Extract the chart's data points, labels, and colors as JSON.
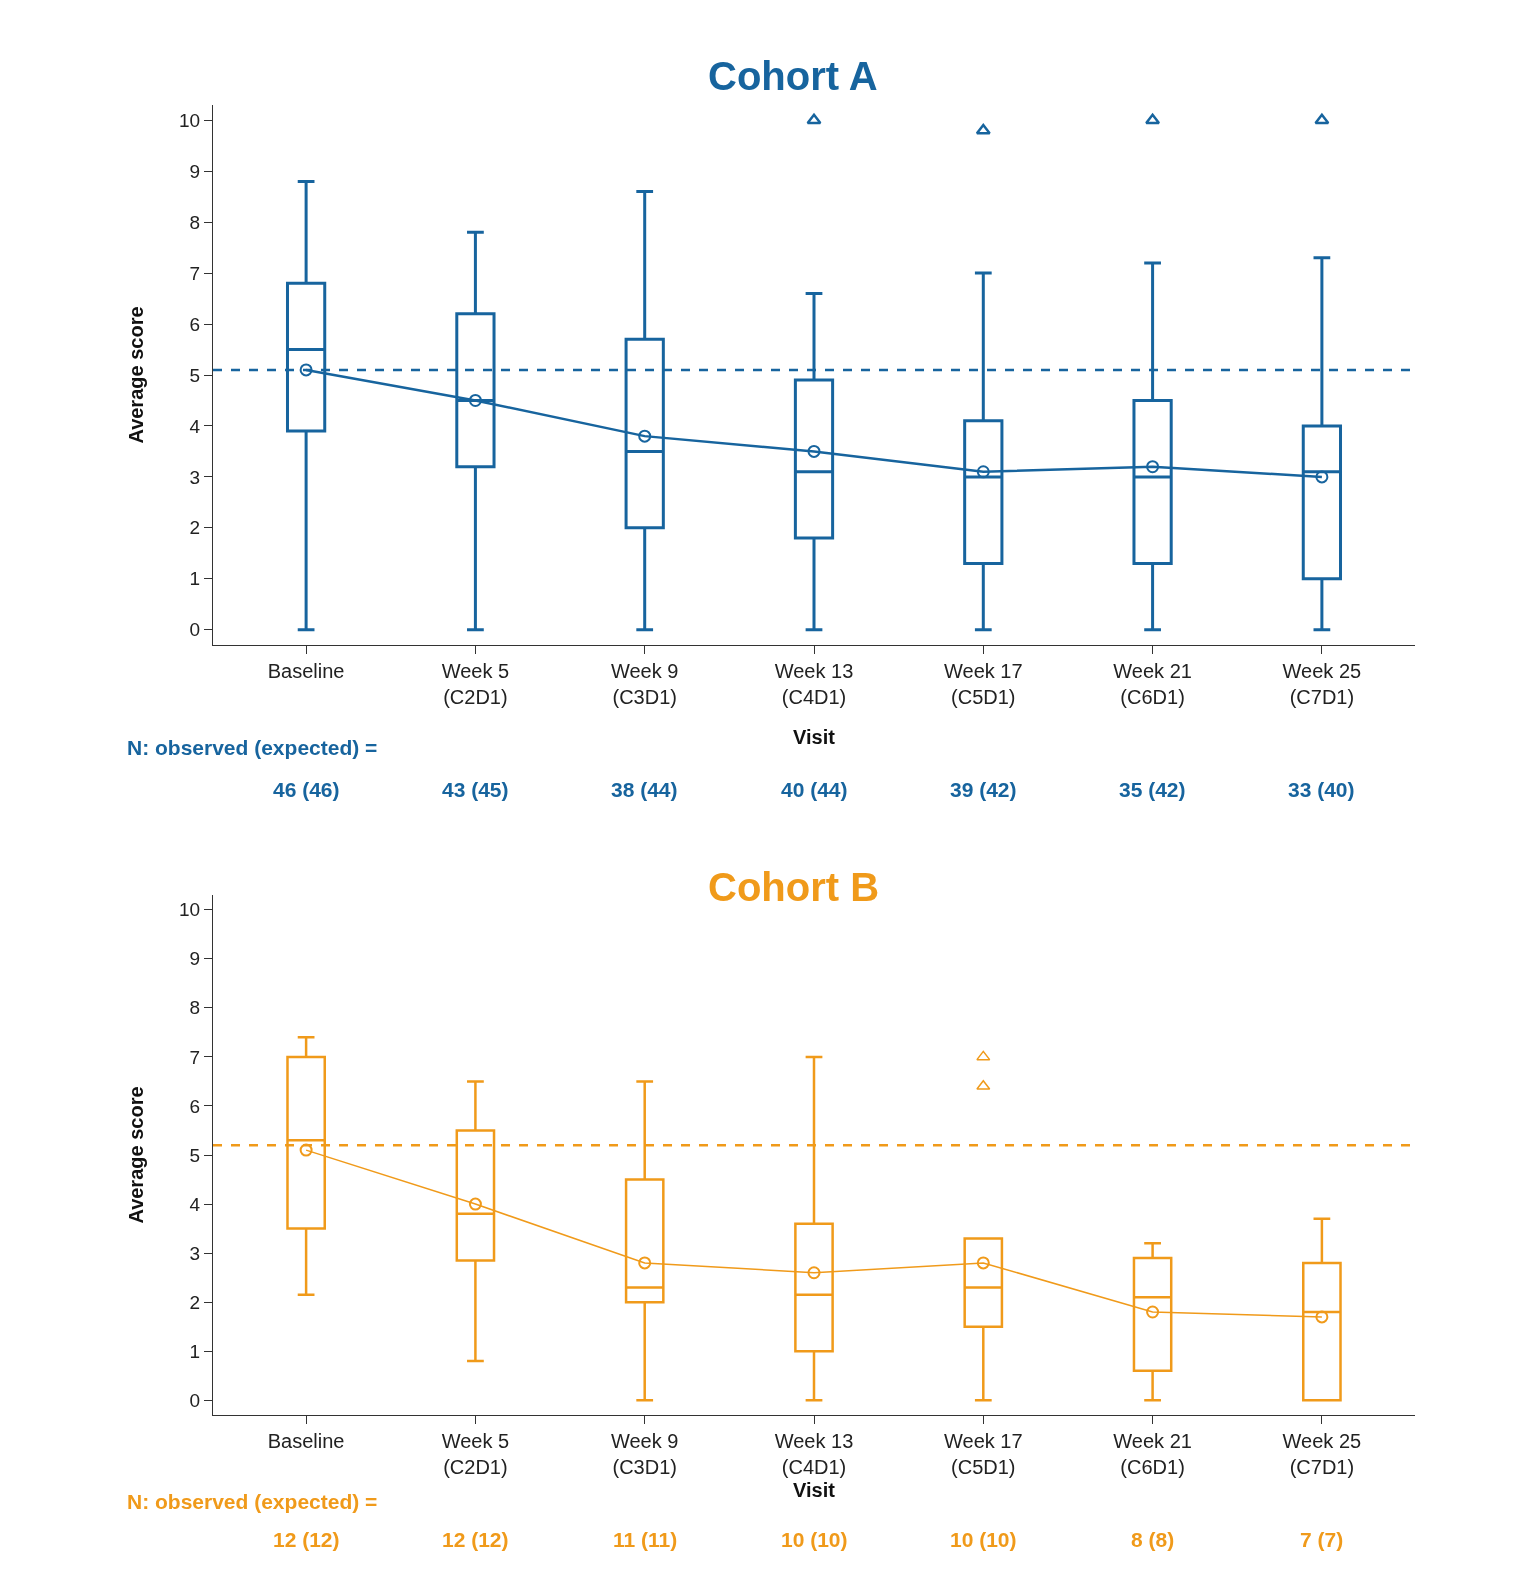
{
  "chart_data": [
    {
      "type": "box",
      "title": "Cohort A",
      "xlabel": "Visit",
      "ylabel": "Average score",
      "color": "#17649e",
      "categories": [
        "Baseline",
        "Week 5\n(C2D1)",
        "Week 9\n(C3D1)",
        "Week 13\n(C4D1)",
        "Week 17\n(C5D1)",
        "Week 21\n(C6D1)",
        "Week 25\n(C7D1)"
      ],
      "boxes": [
        {
          "low": 0,
          "q1": 3.9,
          "median": 5.5,
          "q3": 6.8,
          "high": 8.8
        },
        {
          "low": 0,
          "q1": 3.2,
          "median": 4.5,
          "q3": 6.2,
          "high": 7.8
        },
        {
          "low": 0,
          "q1": 2.0,
          "median": 3.5,
          "q3": 5.7,
          "high": 8.6
        },
        {
          "low": 0,
          "q1": 1.8,
          "median": 3.1,
          "q3": 4.9,
          "high": 6.6,
          "outliers": [
            10.0
          ]
        },
        {
          "low": 0,
          "q1": 1.3,
          "median": 3.0,
          "q3": 4.1,
          "high": 7.0,
          "outliers": [
            9.8
          ]
        },
        {
          "low": 0,
          "q1": 1.3,
          "median": 3.0,
          "q3": 4.5,
          "high": 7.2,
          "outliers": [
            10.0
          ]
        },
        {
          "low": 0,
          "q1": 1.0,
          "median": 3.1,
          "q3": 4.0,
          "high": 7.3,
          "outliers": [
            10.0
          ]
        }
      ],
      "series": [
        {
          "type": "line",
          "color": "#17649e",
          "values": [
            5.1,
            4.5,
            3.8,
            3.5,
            3.1,
            3.2,
            3.0
          ]
        }
      ],
      "marker": "circle",
      "ylim": [
        -0.3,
        10.3
      ],
      "yticks": [
        0,
        1,
        2,
        3,
        4,
        5,
        6,
        7,
        8,
        9,
        10
      ],
      "ref_lines": [
        {
          "axis": "y",
          "value": 5.1,
          "color": "#17649e",
          "line_style": "dashed"
        }
      ],
      "annotations": [
        "N: observed (expected) =",
        "46 (46)",
        "43 (45)",
        "38 (44)",
        "40 (44)",
        "39 (42)",
        "35 (42)",
        "33 (40)"
      ]
    },
    {
      "type": "box",
      "title": "Cohort B",
      "xlabel": "Visit",
      "ylabel": "Average score",
      "color": "#f09a1a",
      "categories": [
        "Baseline",
        "Week 5\n(C2D1)",
        "Week 9\n(C3D1)",
        "Week 13\n(C4D1)",
        "Week 17\n(C5D1)",
        "Week 21\n(C6D1)",
        "Week 25\n(C7D1)"
      ],
      "boxes": [
        {
          "low": 2.15,
          "q1": 3.5,
          "median": 5.3,
          "q3": 7.0,
          "high": 7.4
        },
        {
          "low": 0.8,
          "q1": 2.85,
          "median": 3.8,
          "q3": 5.5,
          "high": 6.5
        },
        {
          "low": 0,
          "q1": 2.0,
          "median": 2.3,
          "q3": 4.5,
          "high": 6.5
        },
        {
          "low": 0,
          "q1": 1.0,
          "median": 2.15,
          "q3": 3.6,
          "high": 7.0
        },
        {
          "low": 0,
          "q1": 1.5,
          "median": 2.3,
          "q3": 3.3,
          "high": 3.3,
          "outliers": [
            7.0,
            6.4
          ]
        },
        {
          "low": 0,
          "q1": 0.6,
          "median": 2.1,
          "q3": 2.9,
          "high": 3.2
        },
        {
          "low": 0,
          "q1": 0,
          "median": 1.8,
          "q3": 2.8,
          "high": 3.7
        }
      ],
      "series": [
        {
          "type": "line",
          "color": "#f09a1a",
          "values": [
            5.1,
            4.0,
            2.8,
            2.6,
            2.8,
            1.8,
            1.7
          ]
        }
      ],
      "marker": "circle",
      "ylim": [
        -0.3,
        10.3
      ],
      "yticks": [
        0,
        1,
        2,
        3,
        4,
        5,
        6,
        7,
        8,
        9,
        10
      ],
      "ref_lines": [
        {
          "axis": "y",
          "value": 5.2,
          "color": "#f09a1a",
          "line_style": "dashed"
        }
      ],
      "annotations": [
        "N: observed (expected) =",
        "12 (12)",
        "12 (12)",
        "11 (11)",
        "10 (10)",
        "10 (10)",
        "8 (8)",
        "7 (7)"
      ]
    }
  ]
}
